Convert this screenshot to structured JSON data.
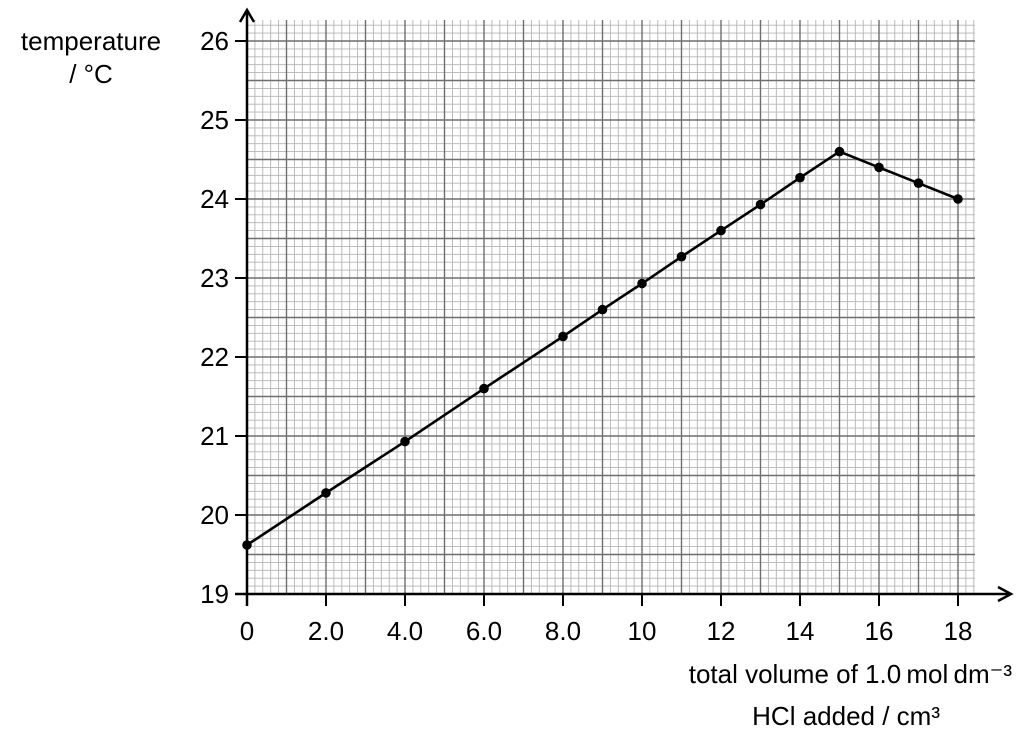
{
  "chart_data": {
    "type": "line",
    "ylabel": [
      "temperature",
      "/ °C"
    ],
    "xlabel": [
      "total volume of 1.0 mol dm⁻³",
      "HCl added / cm³"
    ],
    "x_ticks": [
      "0",
      "2.0",
      "4.0",
      "6.0",
      "8.0",
      "10",
      "12",
      "14",
      "16",
      "18"
    ],
    "y_ticks": [
      "19",
      "20",
      "21",
      "22",
      "23",
      "24",
      "25",
      "26"
    ],
    "xlim": [
      0,
      18
    ],
    "ylim": [
      19,
      26
    ],
    "grid": true,
    "points": [
      {
        "x": 0,
        "y": 19.62
      },
      {
        "x": 2,
        "y": 20.28
      },
      {
        "x": 4,
        "y": 20.93
      },
      {
        "x": 6,
        "y": 21.6
      },
      {
        "x": 8,
        "y": 22.26
      },
      {
        "x": 9,
        "y": 22.6
      },
      {
        "x": 10,
        "y": 22.93
      },
      {
        "x": 11,
        "y": 23.27
      },
      {
        "x": 12,
        "y": 23.6
      },
      {
        "x": 13,
        "y": 23.93
      },
      {
        "x": 14,
        "y": 24.27
      },
      {
        "x": 15,
        "y": 24.6
      },
      {
        "x": 16,
        "y": 24.4
      },
      {
        "x": 17,
        "y": 24.2
      },
      {
        "x": 18,
        "y": 24.0
      }
    ],
    "line_color": "#000000",
    "grid_color_major": "#6e6e6e",
    "grid_color_minor": "#b4b4b4"
  }
}
